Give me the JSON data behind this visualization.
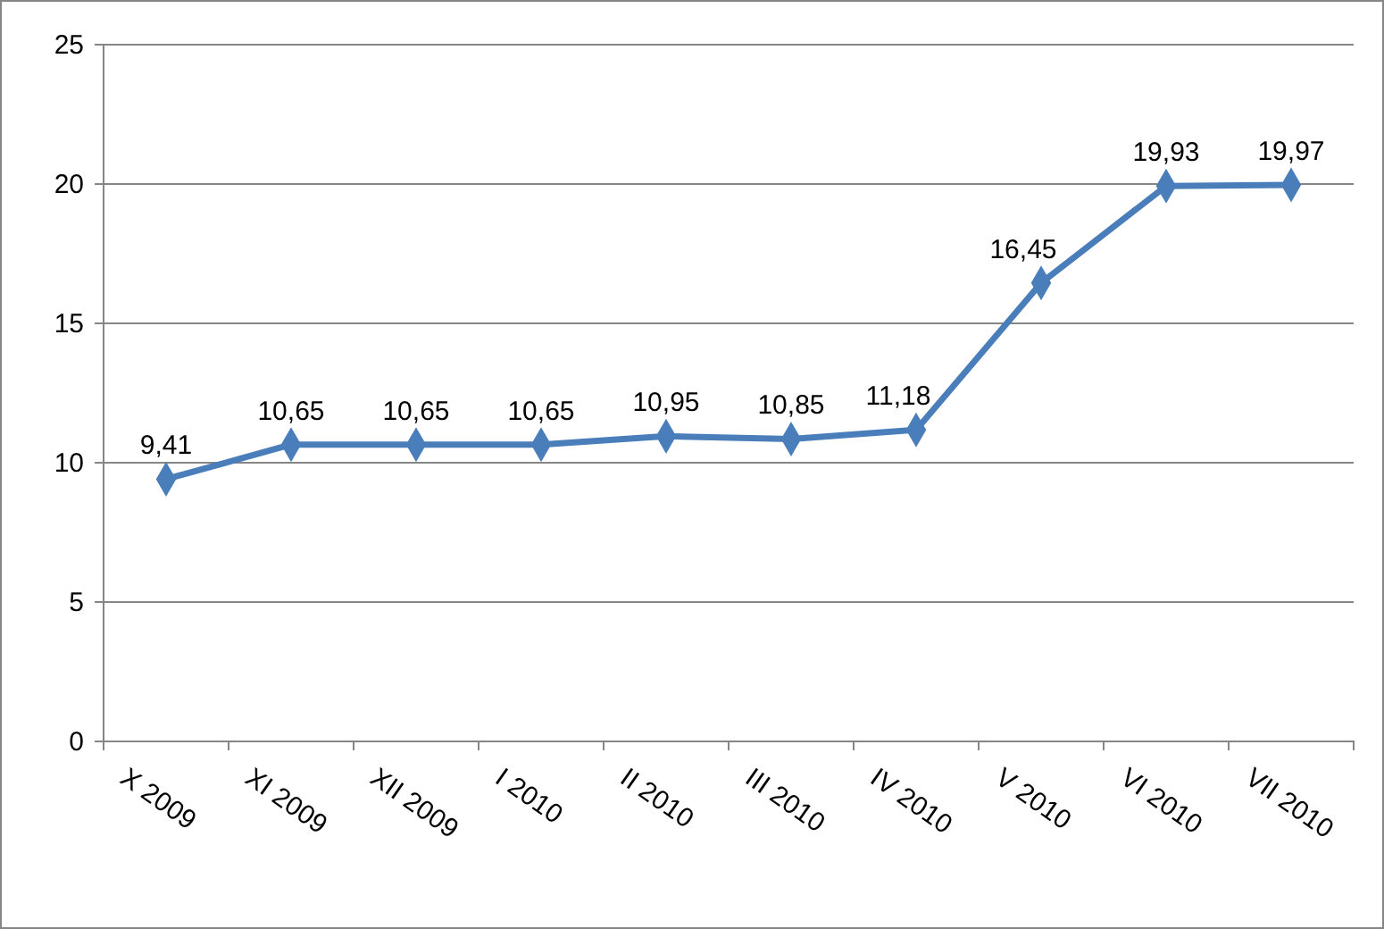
{
  "chart_data": {
    "type": "line",
    "categories": [
      "X 2009",
      "XI 2009",
      "XII 2009",
      "I 2010",
      "II 2010",
      "III 2010",
      "IV 2010",
      "V 2010",
      "VI 2010",
      "VII 2010"
    ],
    "series": [
      {
        "color": "#4a7ebb",
        "values": [
          9.41,
          10.65,
          10.65,
          10.65,
          10.95,
          10.85,
          11.18,
          16.45,
          19.93,
          19.97
        ],
        "value_labels": [
          "9,41",
          "10,65",
          "10,65",
          "10,65",
          "10,95",
          "10,85",
          "11,18",
          "16,45",
          "19,93",
          "19,97"
        ]
      }
    ],
    "ylim": [
      0,
      25
    ],
    "yticks": [
      0,
      5,
      10,
      15,
      20,
      25
    ],
    "grid": "y",
    "marker": "diamond",
    "line_style": "solid"
  }
}
